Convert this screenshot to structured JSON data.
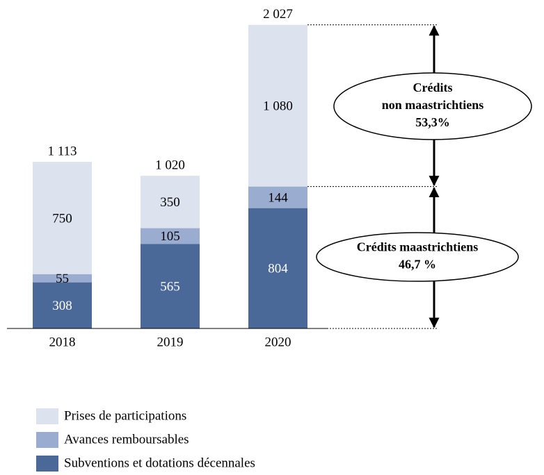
{
  "chart_data": {
    "type": "stacked_bar",
    "categories": [
      "2018",
      "2019",
      "2020"
    ],
    "series": [
      {
        "name": "Subventions et dotations décennales",
        "color": "#4a6898",
        "label_color": "#ffffff",
        "values": [
          308,
          565,
          804
        ]
      },
      {
        "name": "Avances remboursables",
        "color": "#9aaccf",
        "label_color": "#000000",
        "values": [
          55,
          105,
          144
        ]
      },
      {
        "name": "Prises de participations",
        "color": "#dce3ef",
        "label_color": "#000000",
        "values": [
          750,
          350,
          1080
        ],
        "value_labels": [
          "750",
          "350",
          "1 080"
        ]
      }
    ],
    "totals": {
      "values": [
        1113,
        1020,
        2027
      ],
      "value_labels": [
        "1 113",
        "1 020",
        "2 027"
      ]
    },
    "ylim": [
      0,
      2027
    ],
    "annotations": [
      {
        "lines": [
          "Crédits",
          "non maastrichtiens",
          "53,3%"
        ]
      },
      {
        "lines": [
          "Crédits maastrichtiens",
          "46,7 %"
        ]
      }
    ]
  }
}
